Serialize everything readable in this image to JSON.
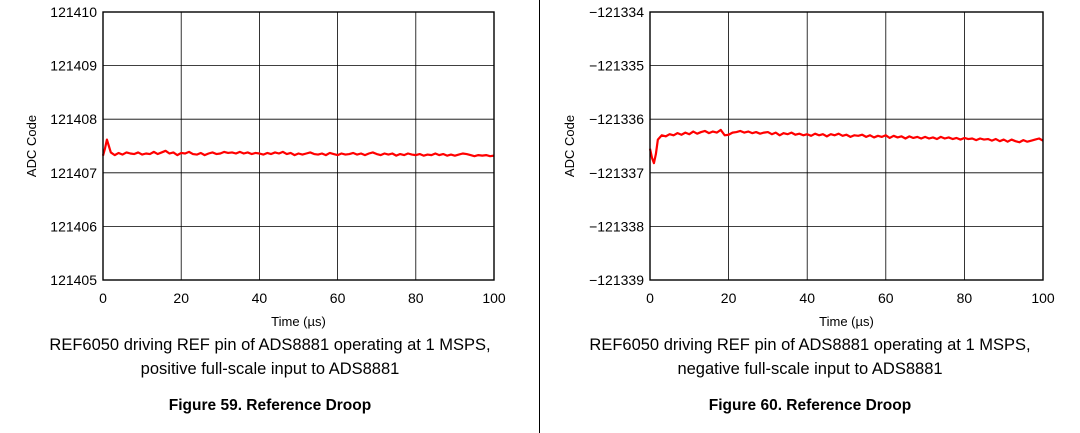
{
  "chart_data": [
    {
      "type": "line",
      "title": "Figure 59. Reference Droop",
      "subtitle": "REF6050 driving REF pin of ADS8881 operating at 1 MSPS,",
      "subtitle2": "positive full-scale input to ADS8881",
      "xlabel": "Time (µs)",
      "ylabel": "ADC Code",
      "xlim": [
        0,
        100
      ],
      "ylim": [
        121405,
        121410
      ],
      "xticks": [
        0,
        20,
        40,
        60,
        80,
        100
      ],
      "yticks": [
        121405,
        121406,
        121407,
        121408,
        121409,
        121410
      ],
      "grid": true,
      "series": [
        {
          "name": "ADC Code",
          "color": "#ff0000",
          "x": [
            0,
            0.5,
            1,
            1.5,
            2,
            3,
            4,
            5,
            6,
            7,
            8,
            9,
            10,
            11,
            12,
            13,
            14,
            15,
            16,
            17,
            18,
            19,
            20,
            21,
            22,
            23,
            24,
            25,
            26,
            27,
            28,
            29,
            30,
            31,
            32,
            33,
            34,
            35,
            36,
            37,
            38,
            39,
            40,
            41,
            42,
            43,
            44,
            45,
            46,
            47,
            48,
            49,
            50,
            51,
            52,
            53,
            54,
            55,
            56,
            57,
            58,
            59,
            60,
            61,
            62,
            63,
            64,
            65,
            66,
            67,
            68,
            69,
            70,
            71,
            72,
            73,
            74,
            75,
            76,
            77,
            78,
            79,
            80,
            81,
            82,
            83,
            84,
            85,
            86,
            87,
            88,
            89,
            90,
            91,
            92,
            93,
            94,
            95,
            96,
            97,
            98,
            99,
            100
          ],
          "y": [
            121407.32,
            121407.45,
            121407.62,
            121407.5,
            121407.38,
            121407.33,
            121407.37,
            121407.34,
            121407.38,
            121407.36,
            121407.35,
            121407.38,
            121407.34,
            121407.36,
            121407.35,
            121407.39,
            121407.35,
            121407.38,
            121407.41,
            121407.36,
            121407.38,
            121407.33,
            121407.37,
            121407.36,
            121407.39,
            121407.35,
            121407.34,
            121407.37,
            121407.33,
            121407.36,
            121407.38,
            121407.35,
            121407.36,
            121407.39,
            121407.37,
            121407.38,
            121407.36,
            121407.39,
            121407.36,
            121407.38,
            121407.35,
            121407.37,
            121407.36,
            121407.34,
            121407.37,
            121407.35,
            121407.38,
            121407.36,
            121407.39,
            121407.35,
            121407.37,
            121407.33,
            121407.36,
            121407.34,
            121407.36,
            121407.38,
            121407.35,
            121407.34,
            121407.36,
            121407.33,
            121407.37,
            121407.35,
            121407.33,
            121407.36,
            121407.34,
            121407.35,
            121407.37,
            121407.34,
            121407.36,
            121407.33,
            121407.36,
            121407.38,
            121407.35,
            121407.33,
            121407.36,
            121407.34,
            121407.36,
            121407.32,
            121407.35,
            121407.33,
            121407.36,
            121407.34,
            121407.33,
            121407.35,
            121407.32,
            121407.34,
            121407.33,
            121407.36,
            121407.33,
            121407.35,
            121407.32,
            121407.34,
            121407.32,
            121407.34,
            121407.36,
            121407.35,
            121407.33,
            121407.31,
            121407.33,
            121407.32,
            121407.33,
            121407.31,
            121407.32
          ]
        }
      ]
    },
    {
      "type": "line",
      "title": "Figure 60. Reference Droop",
      "subtitle": "REF6050 driving REF pin of ADS8881 operating at 1 MSPS,",
      "subtitle2": "negative full-scale input to ADS8881",
      "xlabel": "Time (µs)",
      "ylabel": "ADC Code",
      "xlim": [
        0,
        100
      ],
      "ylim": [
        -121339,
        -121334
      ],
      "xticks": [
        0,
        20,
        40,
        60,
        80,
        100
      ],
      "yticks": [
        -121339,
        -121338,
        -121337,
        -121336,
        -121335,
        -121334
      ],
      "grid": true,
      "series": [
        {
          "name": "ADC Code",
          "color": "#ff0000",
          "x": [
            0,
            0.5,
            1,
            1.5,
            2,
            3,
            4,
            5,
            6,
            7,
            8,
            9,
            10,
            11,
            12,
            13,
            14,
            15,
            16,
            17,
            18,
            19,
            20,
            21,
            22,
            23,
            24,
            25,
            26,
            27,
            28,
            29,
            30,
            31,
            32,
            33,
            34,
            35,
            36,
            37,
            38,
            39,
            40,
            41,
            42,
            43,
            44,
            45,
            46,
            47,
            48,
            49,
            50,
            51,
            52,
            53,
            54,
            55,
            56,
            57,
            58,
            59,
            60,
            61,
            62,
            63,
            64,
            65,
            66,
            67,
            68,
            69,
            70,
            71,
            72,
            73,
            74,
            75,
            76,
            77,
            78,
            79,
            80,
            81,
            82,
            83,
            84,
            85,
            86,
            87,
            88,
            89,
            90,
            91,
            92,
            93,
            94,
            95,
            96,
            97,
            98,
            99,
            100
          ],
          "y": [
            -121336.55,
            -121336.72,
            -121336.82,
            -121336.65,
            -121336.38,
            -121336.3,
            -121336.32,
            -121336.28,
            -121336.3,
            -121336.26,
            -121336.29,
            -121336.25,
            -121336.28,
            -121336.23,
            -121336.27,
            -121336.24,
            -121336.22,
            -121336.26,
            -121336.23,
            -121336.25,
            -121336.2,
            -121336.3,
            -121336.29,
            -121336.25,
            -121336.24,
            -121336.22,
            -121336.25,
            -121336.23,
            -121336.26,
            -121336.24,
            -121336.27,
            -121336.25,
            -121336.24,
            -121336.28,
            -121336.25,
            -121336.3,
            -121336.26,
            -121336.28,
            -121336.25,
            -121336.29,
            -121336.27,
            -121336.3,
            -121336.28,
            -121336.31,
            -121336.27,
            -121336.3,
            -121336.28,
            -121336.32,
            -121336.28,
            -121336.3,
            -121336.27,
            -121336.31,
            -121336.29,
            -121336.33,
            -121336.3,
            -121336.31,
            -121336.29,
            -121336.33,
            -121336.3,
            -121336.34,
            -121336.31,
            -121336.33,
            -121336.3,
            -121336.35,
            -121336.31,
            -121336.34,
            -121336.32,
            -121336.36,
            -121336.32,
            -121336.35,
            -121336.33,
            -121336.36,
            -121336.33,
            -121336.36,
            -121336.34,
            -121336.37,
            -121336.33,
            -121336.36,
            -121336.34,
            -121336.37,
            -121336.35,
            -121336.38,
            -121336.35,
            -121336.37,
            -121336.36,
            -121336.39,
            -121336.36,
            -121336.38,
            -121336.37,
            -121336.4,
            -121336.37,
            -121336.41,
            -121336.38,
            -121336.42,
            -121336.38,
            -121336.41,
            -121336.43,
            -121336.39,
            -121336.42,
            -121336.4,
            -121336.38,
            -121336.36,
            -121336.4
          ]
        }
      ]
    }
  ]
}
